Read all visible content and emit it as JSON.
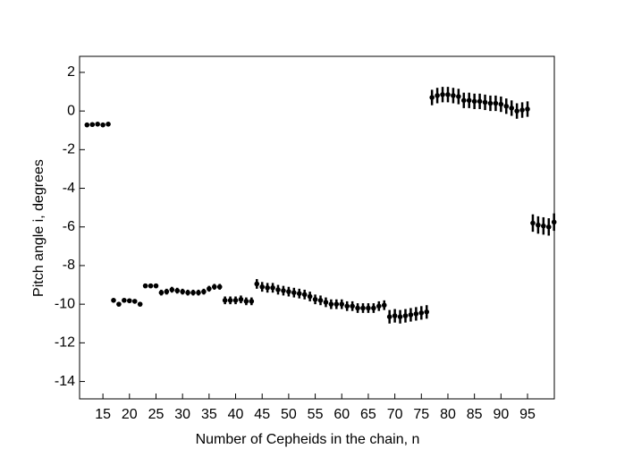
{
  "chart_data": {
    "type": "scatter",
    "xlabel": "Number of Cepheids in the chain, n",
    "ylabel": "Pitch angle i, degrees",
    "xlim": [
      10.6,
      100.05
    ],
    "ylim": [
      -14.9,
      2.83
    ],
    "xticks": [
      15,
      20,
      25,
      30,
      35,
      40,
      45,
      50,
      55,
      60,
      65,
      70,
      75,
      80,
      85,
      90,
      95
    ],
    "yticks": [
      2,
      0,
      -2,
      -4,
      -6,
      -8,
      -10,
      -12,
      -14
    ],
    "color": "#000000",
    "x": [
      12,
      13,
      14,
      15,
      16,
      17,
      18,
      19,
      20,
      21,
      22,
      23,
      24,
      25,
      26,
      27,
      28,
      29,
      30,
      31,
      32,
      33,
      34,
      35,
      36,
      37,
      38,
      39,
      40,
      41,
      42,
      43,
      44,
      45,
      46,
      47,
      48,
      49,
      50,
      51,
      52,
      53,
      54,
      55,
      56,
      57,
      58,
      59,
      60,
      61,
      62,
      63,
      64,
      65,
      66,
      67,
      68,
      69,
      70,
      71,
      72,
      73,
      74,
      75,
      76,
      77,
      78,
      79,
      80,
      81,
      82,
      83,
      84,
      85,
      86,
      87,
      88,
      89,
      90,
      91,
      92,
      93,
      94,
      95,
      96,
      97,
      98,
      99,
      100
    ],
    "values": [
      -0.72,
      -0.7,
      -0.68,
      -0.72,
      -0.68,
      -9.8,
      -10.0,
      -9.8,
      -9.82,
      -9.85,
      -10.0,
      -9.05,
      -9.05,
      -9.05,
      -9.4,
      -9.35,
      -9.25,
      -9.3,
      -9.35,
      -9.4,
      -9.4,
      -9.4,
      -9.35,
      -9.2,
      -9.1,
      -9.1,
      -9.8,
      -9.8,
      -9.8,
      -9.75,
      -9.85,
      -9.85,
      -8.95,
      -9.1,
      -9.15,
      -9.15,
      -9.25,
      -9.3,
      -9.35,
      -9.4,
      -9.45,
      -9.5,
      -9.6,
      -9.75,
      -9.8,
      -9.9,
      -10.0,
      -10.0,
      -10.0,
      -10.1,
      -10.1,
      -10.2,
      -10.2,
      -10.2,
      -10.2,
      -10.1,
      -10.05,
      -10.65,
      -10.6,
      -10.65,
      -10.6,
      -10.55,
      -10.5,
      -10.45,
      -10.4,
      0.7,
      0.8,
      0.85,
      0.85,
      0.8,
      0.75,
      0.55,
      0.55,
      0.5,
      0.5,
      0.45,
      0.4,
      0.4,
      0.35,
      0.25,
      0.15,
      0.0,
      0.05,
      0.1,
      -5.8,
      -5.9,
      -5.95,
      -6.0,
      -5.75
    ],
    "errors": [
      0.05,
      0.05,
      0.05,
      0.05,
      0.05,
      0.1,
      0.1,
      0.1,
      0.1,
      0.1,
      0.1,
      0.12,
      0.12,
      0.12,
      0.15,
      0.15,
      0.15,
      0.15,
      0.15,
      0.15,
      0.15,
      0.15,
      0.15,
      0.15,
      0.15,
      0.15,
      0.2,
      0.2,
      0.2,
      0.2,
      0.2,
      0.2,
      0.25,
      0.25,
      0.25,
      0.25,
      0.25,
      0.25,
      0.25,
      0.25,
      0.25,
      0.25,
      0.25,
      0.25,
      0.25,
      0.25,
      0.25,
      0.25,
      0.25,
      0.25,
      0.25,
      0.25,
      0.25,
      0.25,
      0.25,
      0.25,
      0.25,
      0.35,
      0.35,
      0.35,
      0.35,
      0.35,
      0.35,
      0.35,
      0.35,
      0.4,
      0.4,
      0.4,
      0.4,
      0.4,
      0.4,
      0.4,
      0.4,
      0.4,
      0.4,
      0.4,
      0.4,
      0.4,
      0.4,
      0.4,
      0.4,
      0.4,
      0.4,
      0.4,
      0.45,
      0.45,
      0.45,
      0.45,
      0.45
    ]
  }
}
